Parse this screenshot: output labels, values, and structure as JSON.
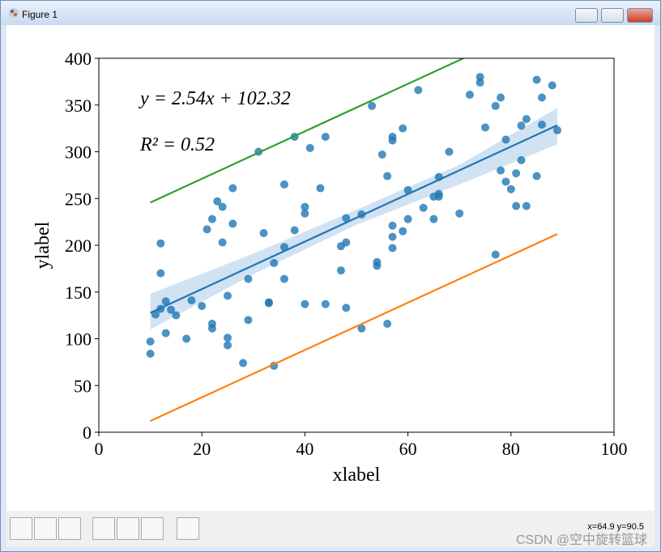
{
  "window": {
    "title": "Figure 1"
  },
  "status": "x=64.9 y=90.5",
  "watermark": "CSDN @空中旋转篮球",
  "chart_data": {
    "type": "scatter",
    "xlabel": "xlabel",
    "ylabel": "ylabel",
    "annotations": [
      "y = 2.54x + 102.32",
      "R² = 0.52"
    ],
    "xlim": [
      0,
      100
    ],
    "xticks": [
      0,
      20,
      40,
      60,
      80,
      100
    ],
    "ylim": [
      0,
      400
    ],
    "yticks": [
      0,
      50,
      100,
      150,
      200,
      250,
      300,
      350,
      400
    ],
    "color": "#1f77b4",
    "x": [
      10,
      10,
      11,
      12,
      12,
      12,
      13,
      13,
      14,
      15,
      17,
      18,
      20,
      21,
      22,
      22,
      22,
      23,
      24,
      24,
      25,
      25,
      25,
      26,
      26,
      28,
      29,
      29,
      31,
      32,
      33,
      33,
      34,
      34,
      36,
      36,
      36,
      38,
      38,
      40,
      40,
      40,
      41,
      43,
      44,
      44,
      47,
      47,
      48,
      48,
      48,
      51,
      51,
      53,
      54,
      54,
      55,
      56,
      56,
      57,
      57,
      57,
      57,
      57,
      59,
      59,
      60,
      60,
      62,
      63,
      65,
      65,
      66,
      66,
      66,
      68,
      70,
      72,
      74,
      74,
      75,
      77,
      77,
      78,
      78,
      79,
      79,
      80,
      81,
      81,
      82,
      82,
      83,
      83,
      85,
      85,
      86,
      86,
      88,
      89
    ],
    "values": [
      97,
      84,
      126,
      132,
      170,
      202,
      140,
      106,
      131,
      125,
      100,
      141,
      135,
      217,
      228,
      116,
      111,
      247,
      241,
      203,
      146,
      101,
      93,
      261,
      223,
      74,
      164,
      120,
      300,
      213,
      139,
      138,
      71,
      181,
      265,
      198,
      164,
      316,
      216,
      241,
      234,
      137,
      304,
      261,
      316,
      137,
      173,
      199,
      229,
      203,
      133,
      233,
      111,
      349,
      182,
      178,
      297,
      274,
      116,
      316,
      312,
      221,
      209,
      197,
      325,
      215,
      259,
      228,
      366,
      240,
      252,
      228,
      273,
      255,
      252,
      300,
      234,
      361,
      380,
      374,
      326,
      349,
      190,
      358,
      280,
      313,
      268,
      260,
      277,
      242,
      328,
      291,
      335,
      242,
      377,
      274,
      358,
      329,
      371,
      323
    ],
    "band": {
      "color": "#c6dbef",
      "x": [
        10,
        30,
        50,
        70,
        89
      ],
      "lower": [
        110,
        169,
        222,
        265,
        308
      ],
      "upper": [
        148,
        191,
        238,
        286,
        347
      ]
    },
    "fits": [
      {
        "color": "#1f77b4",
        "x": [
          10,
          89
        ],
        "values": [
          127.7,
          328.4
        ]
      },
      {
        "color": "#2ca02c",
        "x": [
          10,
          89
        ],
        "values": [
          245.7,
          446.3
        ]
      },
      {
        "color": "#ff7f0e",
        "x": [
          10,
          89
        ],
        "values": [
          12,
          212
        ]
      }
    ]
  }
}
